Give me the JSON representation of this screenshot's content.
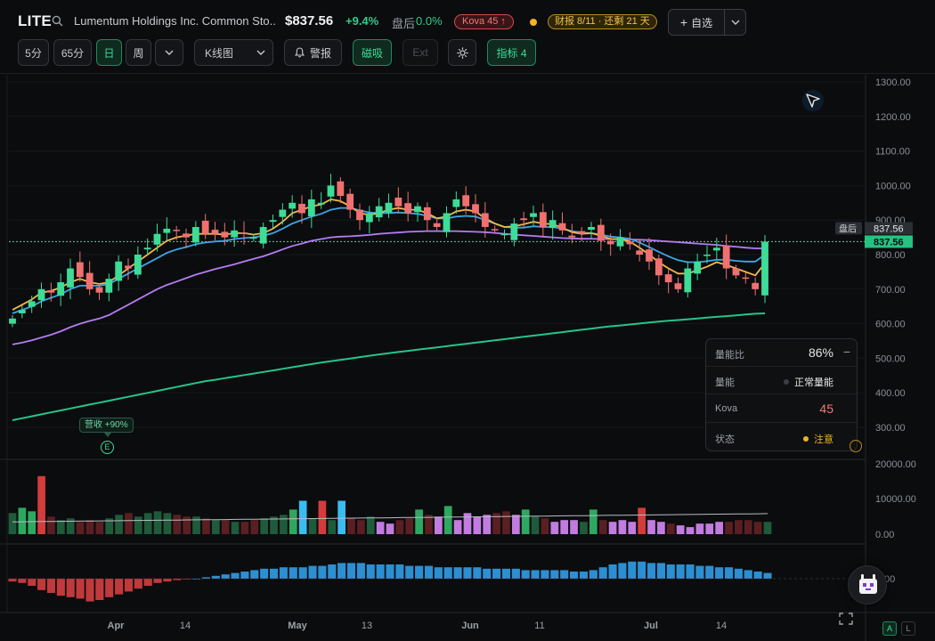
{
  "header": {
    "ticker": "LITE",
    "company": "Lumentum Holdings Inc. Common Sto...",
    "price": "$837.56",
    "change": "+9.4%",
    "after_hours_label": "盘后",
    "after_hours_change": "0.0%",
    "kova_badge": "Kova 45 ↑",
    "earnings_badge": "财报 8/11 · 还剩 21 天",
    "watchlist_label": "自选",
    "colors": {
      "up": "#2ecf8a",
      "kova": "#f07a7a",
      "earnings": "#f0c34a"
    }
  },
  "toolbar": {
    "intervals": [
      "5分",
      "65分",
      "日",
      "周"
    ],
    "active_interval": "日",
    "chart_type": "K线图",
    "alert_label": "警报",
    "magnet_label": "磁吸",
    "ext_label": "Ext",
    "indicators_label": "指标 4"
  },
  "chart_data": {
    "type": "candlestick",
    "price_axis": [
      "1300.00",
      "1200.00",
      "1100.00",
      "1000.00",
      "900.00",
      "800.00",
      "700.00",
      "600.00",
      "500.00",
      "400.00",
      "300.00"
    ],
    "volume_axis": [
      "20000.00",
      "10000.00",
      "0.00"
    ],
    "macd_axis": [
      "00"
    ],
    "x_labels": [
      "Apr",
      "14",
      "May",
      "13",
      "Jun",
      "11",
      "Jul",
      "14"
    ],
    "last_price": "837.56",
    "after_hours_tag": "盘后",
    "after_hours_price": "837.56",
    "closes": [
      615,
      640,
      665,
      700,
      690,
      720,
      760,
      735,
      700,
      690,
      730,
      780,
      760,
      800,
      820,
      860,
      875,
      870,
      850,
      880,
      860,
      860,
      850,
      870,
      860,
      850,
      880,
      900,
      930,
      950,
      920,
      960,
      950,
      1000,
      970,
      930,
      900,
      920,
      940,
      950,
      940,
      920,
      940,
      900,
      880,
      920,
      960,
      940,
      920,
      880,
      870,
      860,
      890,
      900,
      920,
      880,
      900,
      870,
      850,
      860,
      880,
      840,
      830,
      850,
      830,
      800,
      780,
      740,
      720,
      700,
      760,
      780,
      800,
      820,
      760,
      740,
      730,
      700,
      837.56
    ],
    "ma_fast": [
      640,
      655,
      670,
      690,
      695,
      705,
      720,
      730,
      720,
      715,
      720,
      740,
      760,
      780,
      800,
      820,
      840,
      850,
      855,
      860,
      860,
      860,
      858,
      862,
      862,
      858,
      862,
      875,
      895,
      920,
      930,
      940,
      945,
      960,
      955,
      940,
      920,
      915,
      920,
      930,
      935,
      930,
      930,
      920,
      905,
      910,
      925,
      930,
      925,
      905,
      890,
      880,
      882,
      888,
      895,
      890,
      888,
      878,
      865,
      860,
      862,
      855,
      845,
      845,
      838,
      820,
      800,
      778,
      760,
      745,
      745,
      755,
      765,
      778,
      770,
      760,
      750,
      740,
      775
    ],
    "ma_mid": [
      630,
      640,
      650,
      665,
      675,
      685,
      700,
      710,
      710,
      710,
      715,
      730,
      745,
      760,
      775,
      790,
      805,
      815,
      822,
      830,
      835,
      838,
      840,
      845,
      848,
      850,
      855,
      862,
      875,
      890,
      900,
      910,
      918,
      930,
      935,
      935,
      928,
      922,
      920,
      920,
      922,
      920,
      918,
      912,
      905,
      905,
      910,
      912,
      910,
      900,
      890,
      880,
      878,
      878,
      882,
      880,
      880,
      875,
      868,
      864,
      862,
      858,
      852,
      850,
      846,
      835,
      822,
      808,
      795,
      784,
      778,
      778,
      781,
      785,
      785,
      782,
      780,
      780,
      800
    ],
    "ma_slow": [
      540,
      545,
      552,
      560,
      568,
      578,
      590,
      600,
      608,
      615,
      625,
      640,
      655,
      670,
      685,
      700,
      712,
      722,
      732,
      742,
      750,
      758,
      765,
      772,
      780,
      788,
      795,
      805,
      815,
      825,
      832,
      840,
      845,
      850,
      852,
      853,
      855,
      857,
      860,
      862,
      864,
      866,
      867,
      868,
      868,
      868,
      868,
      867,
      866,
      865,
      863,
      860,
      858,
      856,
      854,
      852,
      850,
      848,
      847,
      846,
      846,
      845,
      845,
      844,
      844,
      843,
      842,
      840,
      838,
      836,
      834,
      832,
      830,
      828,
      825,
      823,
      820,
      818,
      818
    ],
    "ma_long": [
      265,
      275,
      285,
      295,
      305,
      315,
      325,
      335,
      345,
      355,
      365,
      375,
      385,
      395,
      405,
      415,
      425,
      435,
      445,
      455,
      465,
      472,
      480,
      488,
      496,
      504,
      512,
      520,
      528,
      536,
      544,
      552,
      560,
      567,
      574,
      581,
      588,
      595,
      602,
      608,
      614,
      620,
      626,
      632,
      638,
      644,
      650,
      656,
      662,
      668,
      674,
      680,
      686,
      692,
      698,
      704,
      710,
      716,
      722,
      728,
      734,
      740,
      746,
      750,
      755,
      760,
      765,
      770,
      774,
      778,
      782,
      786,
      790,
      794,
      798,
      802,
      806,
      810,
      812
    ],
    "volumes": [
      6000,
      7500,
      6500,
      16500,
      5000,
      4000,
      4500,
      3500,
      4000,
      3500,
      4500,
      5500,
      6000,
      5000,
      6000,
      6500,
      6000,
      5500,
      5000,
      5000,
      4500,
      4000,
      4000,
      3500,
      3500,
      4000,
      4500,
      5000,
      5500,
      7000,
      9500,
      4500,
      9500,
      4000,
      9500,
      4500,
      4000,
      5000,
      3500,
      3000,
      4000,
      4500,
      7000,
      5500,
      5000,
      8000,
      4000,
      6000,
      5000,
      5500,
      6000,
      6500,
      5500,
      7000,
      5000,
      4500,
      3500,
      4000,
      4000,
      3500,
      7000,
      4000,
      3500,
      4000,
      3500,
      7500,
      4000,
      3500,
      3000,
      2500,
      2000,
      3000,
      3000,
      3500,
      3500,
      4000,
      4000,
      3500,
      3500
    ],
    "volume_ma_label": "",
    "macd": [
      -2,
      -3,
      -5,
      -8,
      -10,
      -12,
      -13,
      -14,
      -16,
      -15,
      -13,
      -11,
      -9,
      -7,
      -5,
      -3,
      -2,
      -1,
      -0.5,
      0,
      1,
      2,
      3,
      4,
      5,
      6,
      7,
      7,
      8,
      8,
      8,
      9,
      9,
      10,
      11,
      11,
      11,
      10,
      10,
      10,
      10,
      9,
      9,
      9,
      8,
      8,
      8,
      8,
      8,
      7,
      7,
      7,
      7,
      6,
      6,
      6,
      6,
      6,
      5,
      5,
      6,
      8,
      10,
      11,
      12,
      12,
      11,
      11,
      10,
      10,
      10,
      9,
      9,
      8,
      8,
      7,
      6,
      5,
      4
    ]
  },
  "overlays": {
    "earnings_pill": "营收 +90%",
    "earnings_marker": "E"
  },
  "panel": {
    "rows": [
      {
        "label": "量能比",
        "value": "86%",
        "action": "−"
      },
      {
        "label": "量能",
        "value": "正常量能",
        "dot_color": "#3b3f45"
      },
      {
        "label": "Kova",
        "value": "45",
        "value_color": "#f07a7a"
      },
      {
        "label": "状态",
        "value": "注意",
        "dot_color": "#f0b429",
        "value_color": "#f0b429"
      }
    ]
  },
  "footer": {
    "btn_a": "A",
    "btn_l": "L"
  }
}
